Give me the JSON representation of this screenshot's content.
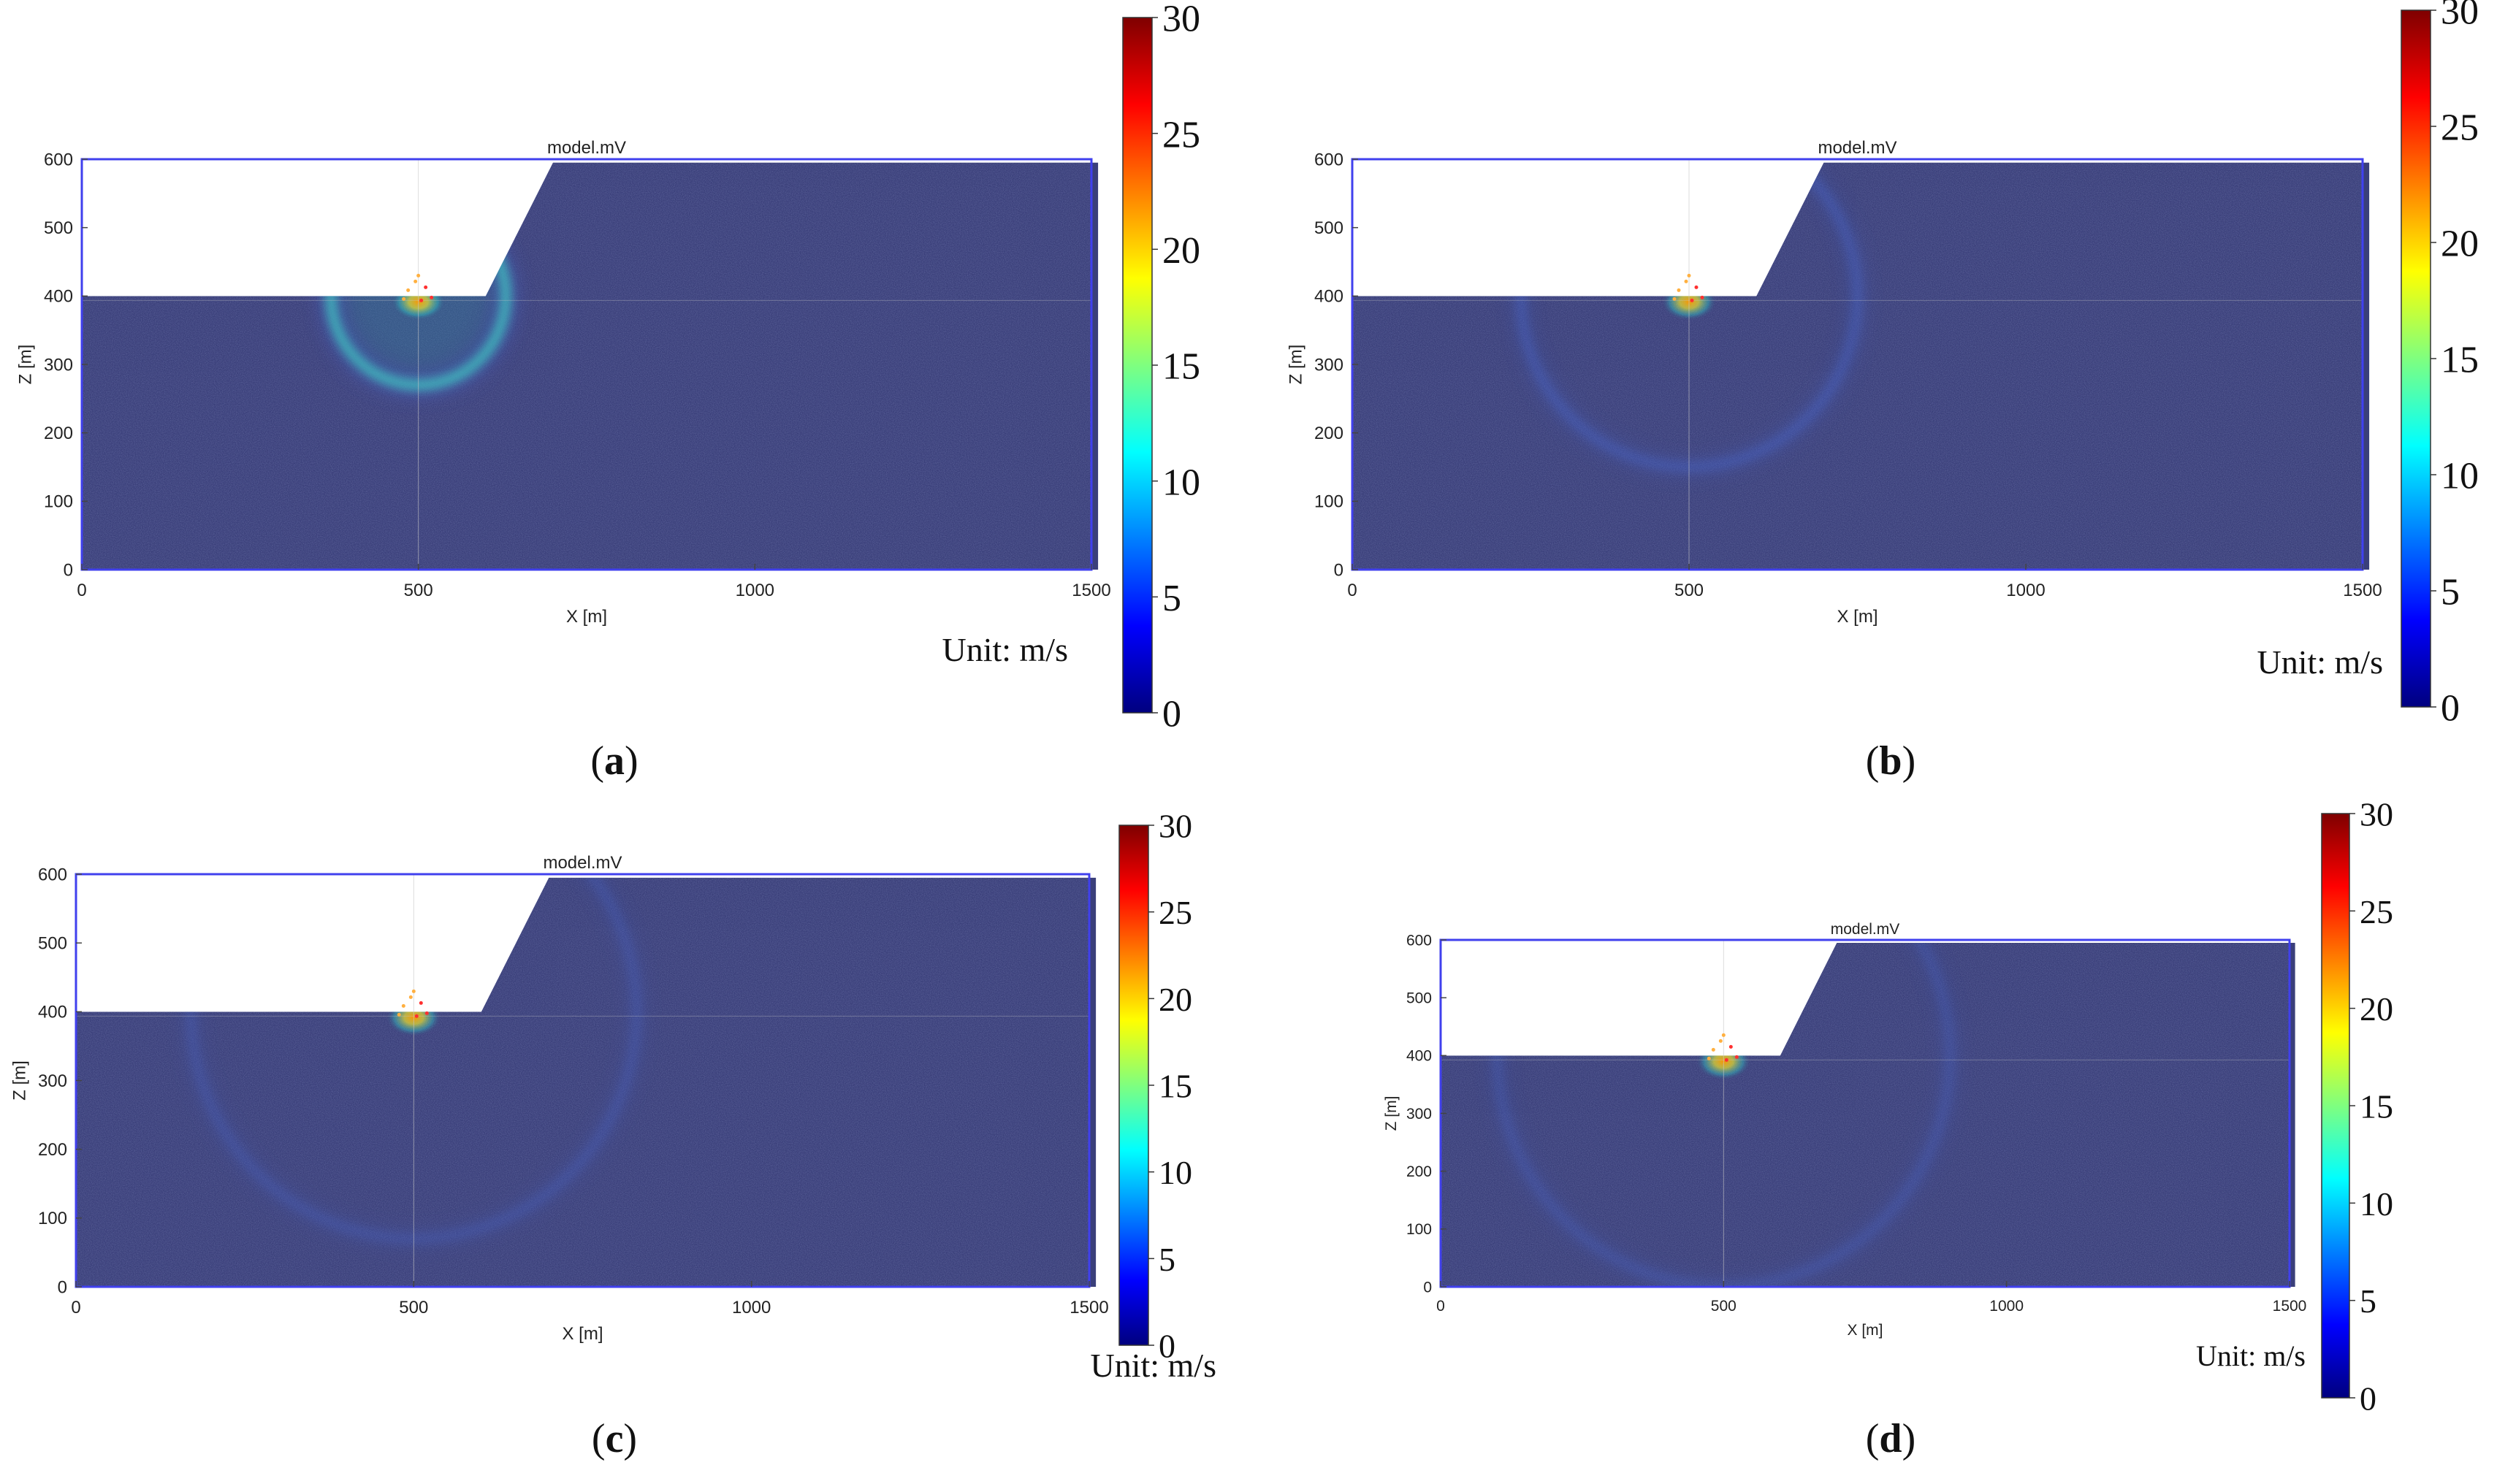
{
  "chart_data": [
    {
      "type": "heatmap",
      "panel_label": "a",
      "title": "model.mV",
      "xlabel": "X [m]",
      "ylabel": "Z [m]",
      "xlim": [
        0,
        1500
      ],
      "ylim": [
        0,
        600
      ],
      "x_ticks": [
        "0",
        "500",
        "1000",
        "1500"
      ],
      "y_ticks": [
        "0",
        "100",
        "200",
        "300",
        "400",
        "500",
        "600"
      ],
      "terrain_profile": [
        [
          0,
          400
        ],
        [
          600,
          400
        ],
        [
          700,
          595
        ],
        [
          1510,
          595
        ]
      ],
      "source": {
        "x": 500,
        "z": 400
      },
      "wavefront_radius_m": 130,
      "colorbar": {
        "range": [
          0,
          30
        ],
        "ticks": [
          "0",
          "5",
          "10",
          "15",
          "20",
          "25",
          "30"
        ],
        "unit": "Unit: m/s"
      }
    },
    {
      "type": "heatmap",
      "panel_label": "b",
      "title": "model.mV",
      "xlabel": "X [m]",
      "ylabel": "Z [m]",
      "xlim": [
        0,
        1500
      ],
      "ylim": [
        0,
        600
      ],
      "x_ticks": [
        "0",
        "500",
        "1000",
        "1500"
      ],
      "y_ticks": [
        "0",
        "100",
        "200",
        "300",
        "400",
        "500",
        "600"
      ],
      "terrain_profile": [
        [
          0,
          400
        ],
        [
          600,
          400
        ],
        [
          700,
          595
        ],
        [
          1510,
          595
        ]
      ],
      "source": {
        "x": 500,
        "z": 400
      },
      "wavefront_radius_m": 250,
      "colorbar": {
        "range": [
          0,
          30
        ],
        "ticks": [
          "0",
          "5",
          "10",
          "15",
          "20",
          "25",
          "30"
        ],
        "unit": "Unit: m/s"
      }
    },
    {
      "type": "heatmap",
      "panel_label": "c",
      "title": "model.mV",
      "xlabel": "X [m]",
      "ylabel": "Z [m]",
      "xlim": [
        0,
        1500
      ],
      "ylim": [
        0,
        600
      ],
      "x_ticks": [
        "0",
        "500",
        "1000",
        "1500"
      ],
      "y_ticks": [
        "0",
        "100",
        "200",
        "300",
        "400",
        "500",
        "600"
      ],
      "terrain_profile": [
        [
          0,
          400
        ],
        [
          600,
          400
        ],
        [
          700,
          595
        ],
        [
          1510,
          595
        ]
      ],
      "source": {
        "x": 500,
        "z": 400
      },
      "wavefront_radius_m": 330,
      "colorbar": {
        "range": [
          0,
          30
        ],
        "ticks": [
          "0",
          "5",
          "10",
          "15",
          "20",
          "25",
          "30"
        ],
        "unit": "Unit: m/s"
      }
    },
    {
      "type": "heatmap",
      "panel_label": "d",
      "title": "model.mV",
      "xlabel": "X [m]",
      "ylabel": "Z [m]",
      "xlim": [
        0,
        1500
      ],
      "ylim": [
        0,
        600
      ],
      "x_ticks": [
        "0",
        "500",
        "1000",
        "1500"
      ],
      "y_ticks": [
        "0",
        "100",
        "200",
        "300",
        "400",
        "500",
        "600"
      ],
      "terrain_profile": [
        [
          0,
          400
        ],
        [
          600,
          400
        ],
        [
          700,
          595
        ],
        [
          1510,
          595
        ]
      ],
      "source": {
        "x": 500,
        "z": 400
      },
      "wavefront_radius_m": 400,
      "colorbar": {
        "range": [
          0,
          30
        ],
        "ticks": [
          "0",
          "5",
          "10",
          "15",
          "20",
          "25",
          "30"
        ],
        "unit": "Unit: m/s"
      }
    }
  ],
  "colors": {
    "background_medium": "#3a3f7a",
    "frame": "#4040ee",
    "wavefront": "#4a6ad8",
    "axis_text": "#222222"
  },
  "colormap_stops": [
    "#00007f",
    "#0000ff",
    "#007fff",
    "#00ffff",
    "#7fff7f",
    "#ffff00",
    "#ff7f00",
    "#ff0000",
    "#7f0000"
  ]
}
